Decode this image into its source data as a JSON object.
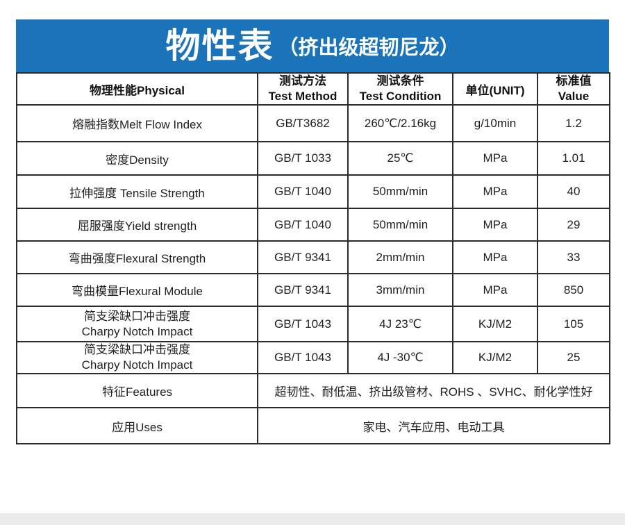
{
  "banner": {
    "title": "物性表",
    "subtitle": "（挤出级超韧尼龙）",
    "bg_color": "#1b73b9"
  },
  "table": {
    "headers": {
      "physical": "物理性能Physical",
      "method_zh": "测试方法",
      "method_en": "Test Method",
      "condition_zh": "测试条件",
      "condition_en": "Test Condition",
      "unit": "单位(UNIT)",
      "value_zh": "标准值",
      "value_en": "Value"
    },
    "rows": [
      {
        "property": "熔融指数Melt Flow Index",
        "method": "GB/T3682",
        "condition": "260℃/2.16kg",
        "unit": "g/10min",
        "value": "1.2"
      },
      {
        "property": "密度Density",
        "method": "GB/T 1033",
        "condition": "25℃",
        "unit": "MPa",
        "value": "1.01"
      },
      {
        "property": "拉伸强度 Tensile Strength",
        "method": "GB/T 1040",
        "condition": "50mm/min",
        "unit": "MPa",
        "value": "40"
      },
      {
        "property": "屈服强度Yield strength",
        "method": "GB/T 1040",
        "condition": "50mm/min",
        "unit": "MPa",
        "value": "29"
      },
      {
        "property": "弯曲强度Flexural Strength",
        "method": "GB/T 9341",
        "condition": "2mm/min",
        "unit": "MPa",
        "value": "33"
      },
      {
        "property": "弯曲模量Flexural Module",
        "method": "GB/T 9341",
        "condition": "3mm/min",
        "unit": "MPa",
        "value": "850"
      },
      {
        "property": "简支梁缺口冲击强度",
        "property_en": "Charpy Notch Impact",
        "method": "GB/T 1043",
        "condition": "4J 23℃",
        "unit": "KJ/M2",
        "value": "105"
      },
      {
        "property": "简支梁缺口冲击强度",
        "property_en": "Charpy Notch Impact",
        "method": "GB/T 1043",
        "condition": "4J -30℃",
        "unit": "KJ/M2",
        "value": "25"
      }
    ],
    "features": {
      "label": "特征Features",
      "value": "超韧性、耐低温、挤出级管材、ROHS 、SVHC、耐化学性好"
    },
    "uses": {
      "label": "应用Uses",
      "value": "家电、汽车应用、电动工具"
    }
  },
  "footer": {
    "strip_color": "#ebebeb"
  }
}
